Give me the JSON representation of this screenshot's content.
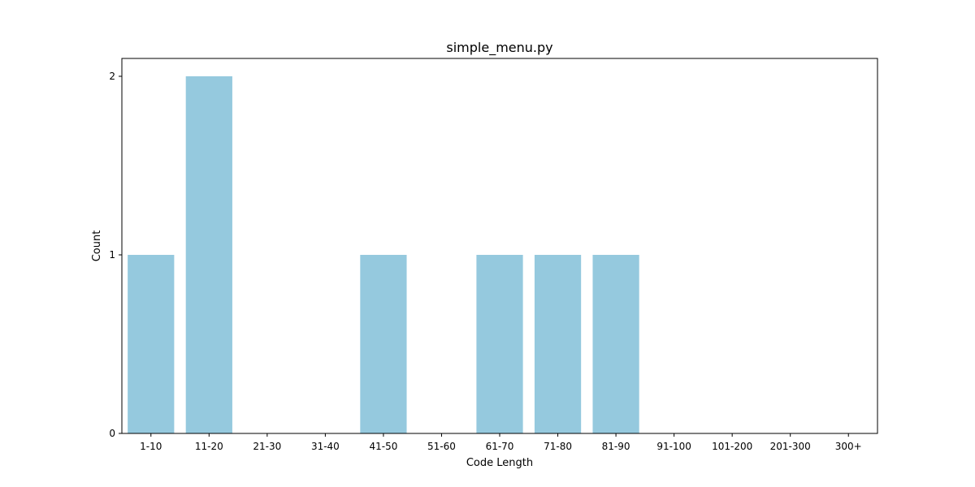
{
  "chart_data": {
    "type": "bar",
    "title": "simple_menu.py",
    "xlabel": "Code Length",
    "ylabel": "Count",
    "categories": [
      "1-10",
      "11-20",
      "21-30",
      "31-40",
      "41-50",
      "51-60",
      "61-70",
      "71-80",
      "81-90",
      "91-100",
      "101-200",
      "201-300",
      "300+"
    ],
    "values": [
      1,
      2,
      0,
      0,
      1,
      0,
      1,
      1,
      1,
      0,
      0,
      0,
      0
    ],
    "yticks": [
      0,
      1,
      2
    ],
    "ytick_labels": [
      "0",
      "1",
      "2"
    ],
    "ylim": [
      0,
      2.1
    ],
    "grid": false,
    "bar_color": "#95c9de"
  }
}
